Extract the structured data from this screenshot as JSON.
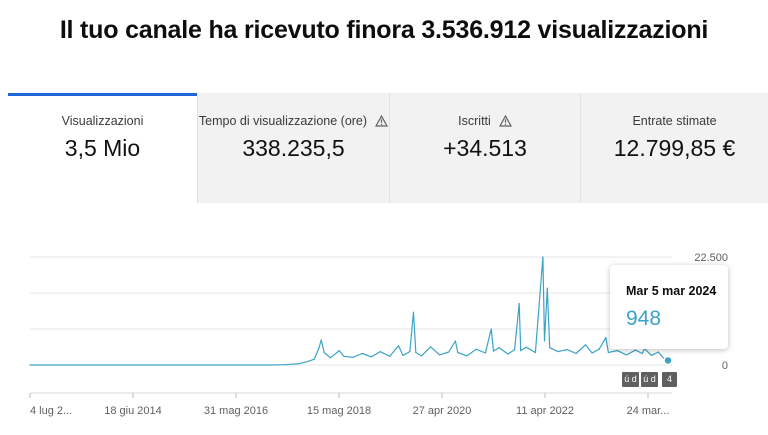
{
  "headline": "Il tuo canale ha ricevuto finora 3.536.912 visualizzazioni",
  "metrics": [
    {
      "label": "Visualizzazioni",
      "value": "3,5 Mio",
      "warning": false,
      "active": true
    },
    {
      "label": "Tempo di visualizzazione (ore)",
      "value": "338.235,5",
      "warning": true,
      "active": false
    },
    {
      "label": "Iscritti",
      "value": "+34.513",
      "warning": true,
      "active": false
    },
    {
      "label": "Entrate stimate",
      "value": "12.799,85 €",
      "warning": false,
      "active": false
    }
  ],
  "tooltip": {
    "date": "Mar 5 mar 2024",
    "value": "948"
  },
  "markers": [
    {
      "label": "ú d"
    },
    {
      "label": "ú d"
    },
    {
      "label": "4"
    }
  ],
  "colors": {
    "accent": "#1e66d6",
    "line": "#3aa3c6",
    "grid": "#e6e6e6"
  },
  "chart_data": {
    "type": "line",
    "title": "",
    "xlabel": "",
    "ylabel": "",
    "ylim": [
      0,
      22500
    ],
    "y_ticks": [
      "22.500",
      "0"
    ],
    "x_tick_labels": [
      "4 lug 2...",
      "18 giu 2014",
      "31 mag 2016",
      "15 mag 2018",
      "27 apr 2020",
      "11 apr 2022",
      "24 mar..."
    ],
    "x_range": [
      "2012-07-04",
      "2024-03-05"
    ],
    "series": [
      {
        "values": [
          [
            "2012-07-04",
            0
          ],
          [
            "2016-12-01",
            0
          ],
          [
            "2017-03-01",
            60
          ],
          [
            "2017-06-01",
            250
          ],
          [
            "2017-08-01",
            700
          ],
          [
            "2017-09-15",
            1200
          ],
          [
            "2017-10-15",
            3500
          ],
          [
            "2017-11-01",
            5200
          ],
          [
            "2017-11-20",
            2600
          ],
          [
            "2018-01-01",
            1500
          ],
          [
            "2018-03-01",
            3000
          ],
          [
            "2018-04-01",
            1800
          ],
          [
            "2018-06-01",
            1600
          ],
          [
            "2018-08-01",
            2400
          ],
          [
            "2018-10-01",
            1700
          ],
          [
            "2018-12-01",
            2800
          ],
          [
            "2019-02-01",
            1800
          ],
          [
            "2019-04-01",
            4000
          ],
          [
            "2019-05-01",
            2000
          ],
          [
            "2019-06-15",
            2800
          ],
          [
            "2019-07-10",
            11000
          ],
          [
            "2019-07-25",
            2600
          ],
          [
            "2019-09-01",
            1900
          ],
          [
            "2019-11-01",
            3800
          ],
          [
            "2020-01-01",
            2100
          ],
          [
            "2020-03-01",
            2700
          ],
          [
            "2020-04-15",
            5000
          ],
          [
            "2020-05-01",
            2600
          ],
          [
            "2020-07-01",
            1900
          ],
          [
            "2020-09-01",
            3300
          ],
          [
            "2020-11-01",
            2500
          ],
          [
            "2020-12-10",
            7500
          ],
          [
            "2020-12-25",
            2900
          ],
          [
            "2021-02-01",
            3600
          ],
          [
            "2021-04-01",
            2300
          ],
          [
            "2021-05-15",
            3200
          ],
          [
            "2021-06-15",
            12800
          ],
          [
            "2021-06-25",
            3000
          ],
          [
            "2021-08-01",
            3700
          ],
          [
            "2021-10-01",
            2600
          ],
          [
            "2021-11-20",
            22500
          ],
          [
            "2021-12-01",
            5000
          ],
          [
            "2021-12-20",
            16000
          ],
          [
            "2022-01-05",
            3600
          ],
          [
            "2022-03-01",
            2800
          ],
          [
            "2022-05-01",
            3200
          ],
          [
            "2022-07-01",
            2400
          ],
          [
            "2022-09-01",
            4200
          ],
          [
            "2022-10-15",
            2500
          ],
          [
            "2022-12-01",
            3300
          ],
          [
            "2023-01-15",
            5700
          ],
          [
            "2023-02-01",
            2600
          ],
          [
            "2023-04-01",
            3000
          ],
          [
            "2023-06-01",
            2100
          ],
          [
            "2023-08-01",
            3100
          ],
          [
            "2023-09-15",
            2400
          ],
          [
            "2023-10-01",
            3400
          ],
          [
            "2023-11-15",
            2000
          ],
          [
            "2024-01-01",
            2700
          ],
          [
            "2024-02-01",
            1500
          ],
          [
            "2024-03-05",
            948
          ]
        ]
      }
    ]
  }
}
